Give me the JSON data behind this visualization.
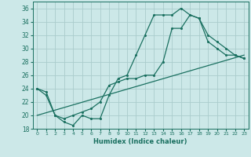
{
  "xlabel": "Humidex (Indice chaleur)",
  "bg_color": "#cce8e8",
  "grid_color": "#aacccc",
  "line_color": "#1a7060",
  "xlim": [
    -0.5,
    23.5
  ],
  "ylim": [
    18,
    37
  ],
  "xticks": [
    0,
    1,
    2,
    3,
    4,
    5,
    6,
    7,
    8,
    9,
    10,
    11,
    12,
    13,
    14,
    15,
    16,
    17,
    18,
    19,
    20,
    21,
    22,
    23
  ],
  "yticks": [
    18,
    20,
    22,
    24,
    26,
    28,
    30,
    32,
    34,
    36
  ],
  "line1_x": [
    0,
    1,
    2,
    3,
    4,
    5,
    6,
    7,
    8,
    9,
    10,
    11,
    12,
    13,
    14,
    15,
    16,
    17,
    18,
    19,
    20,
    21,
    22,
    23
  ],
  "line1_y": [
    24,
    23,
    20,
    19,
    18.5,
    20,
    19.5,
    19.5,
    23,
    25.5,
    26,
    29,
    32,
    35,
    35,
    35,
    36,
    35,
    34.5,
    31,
    30,
    29,
    29,
    28.5
  ],
  "line2_x": [
    0,
    1,
    2,
    3,
    4,
    5,
    6,
    7,
    8,
    9,
    10,
    11,
    12,
    13,
    14,
    15,
    16,
    17,
    18,
    19,
    20,
    21,
    22,
    23
  ],
  "line2_y": [
    24,
    23.5,
    20,
    19.5,
    20,
    20.5,
    21,
    22,
    24.5,
    25,
    25.5,
    25.5,
    26,
    26,
    28,
    33,
    33,
    35,
    34.5,
    32,
    31,
    30,
    29,
    28.5
  ],
  "line3_x": [
    0,
    23
  ],
  "line3_y": [
    20,
    29
  ]
}
